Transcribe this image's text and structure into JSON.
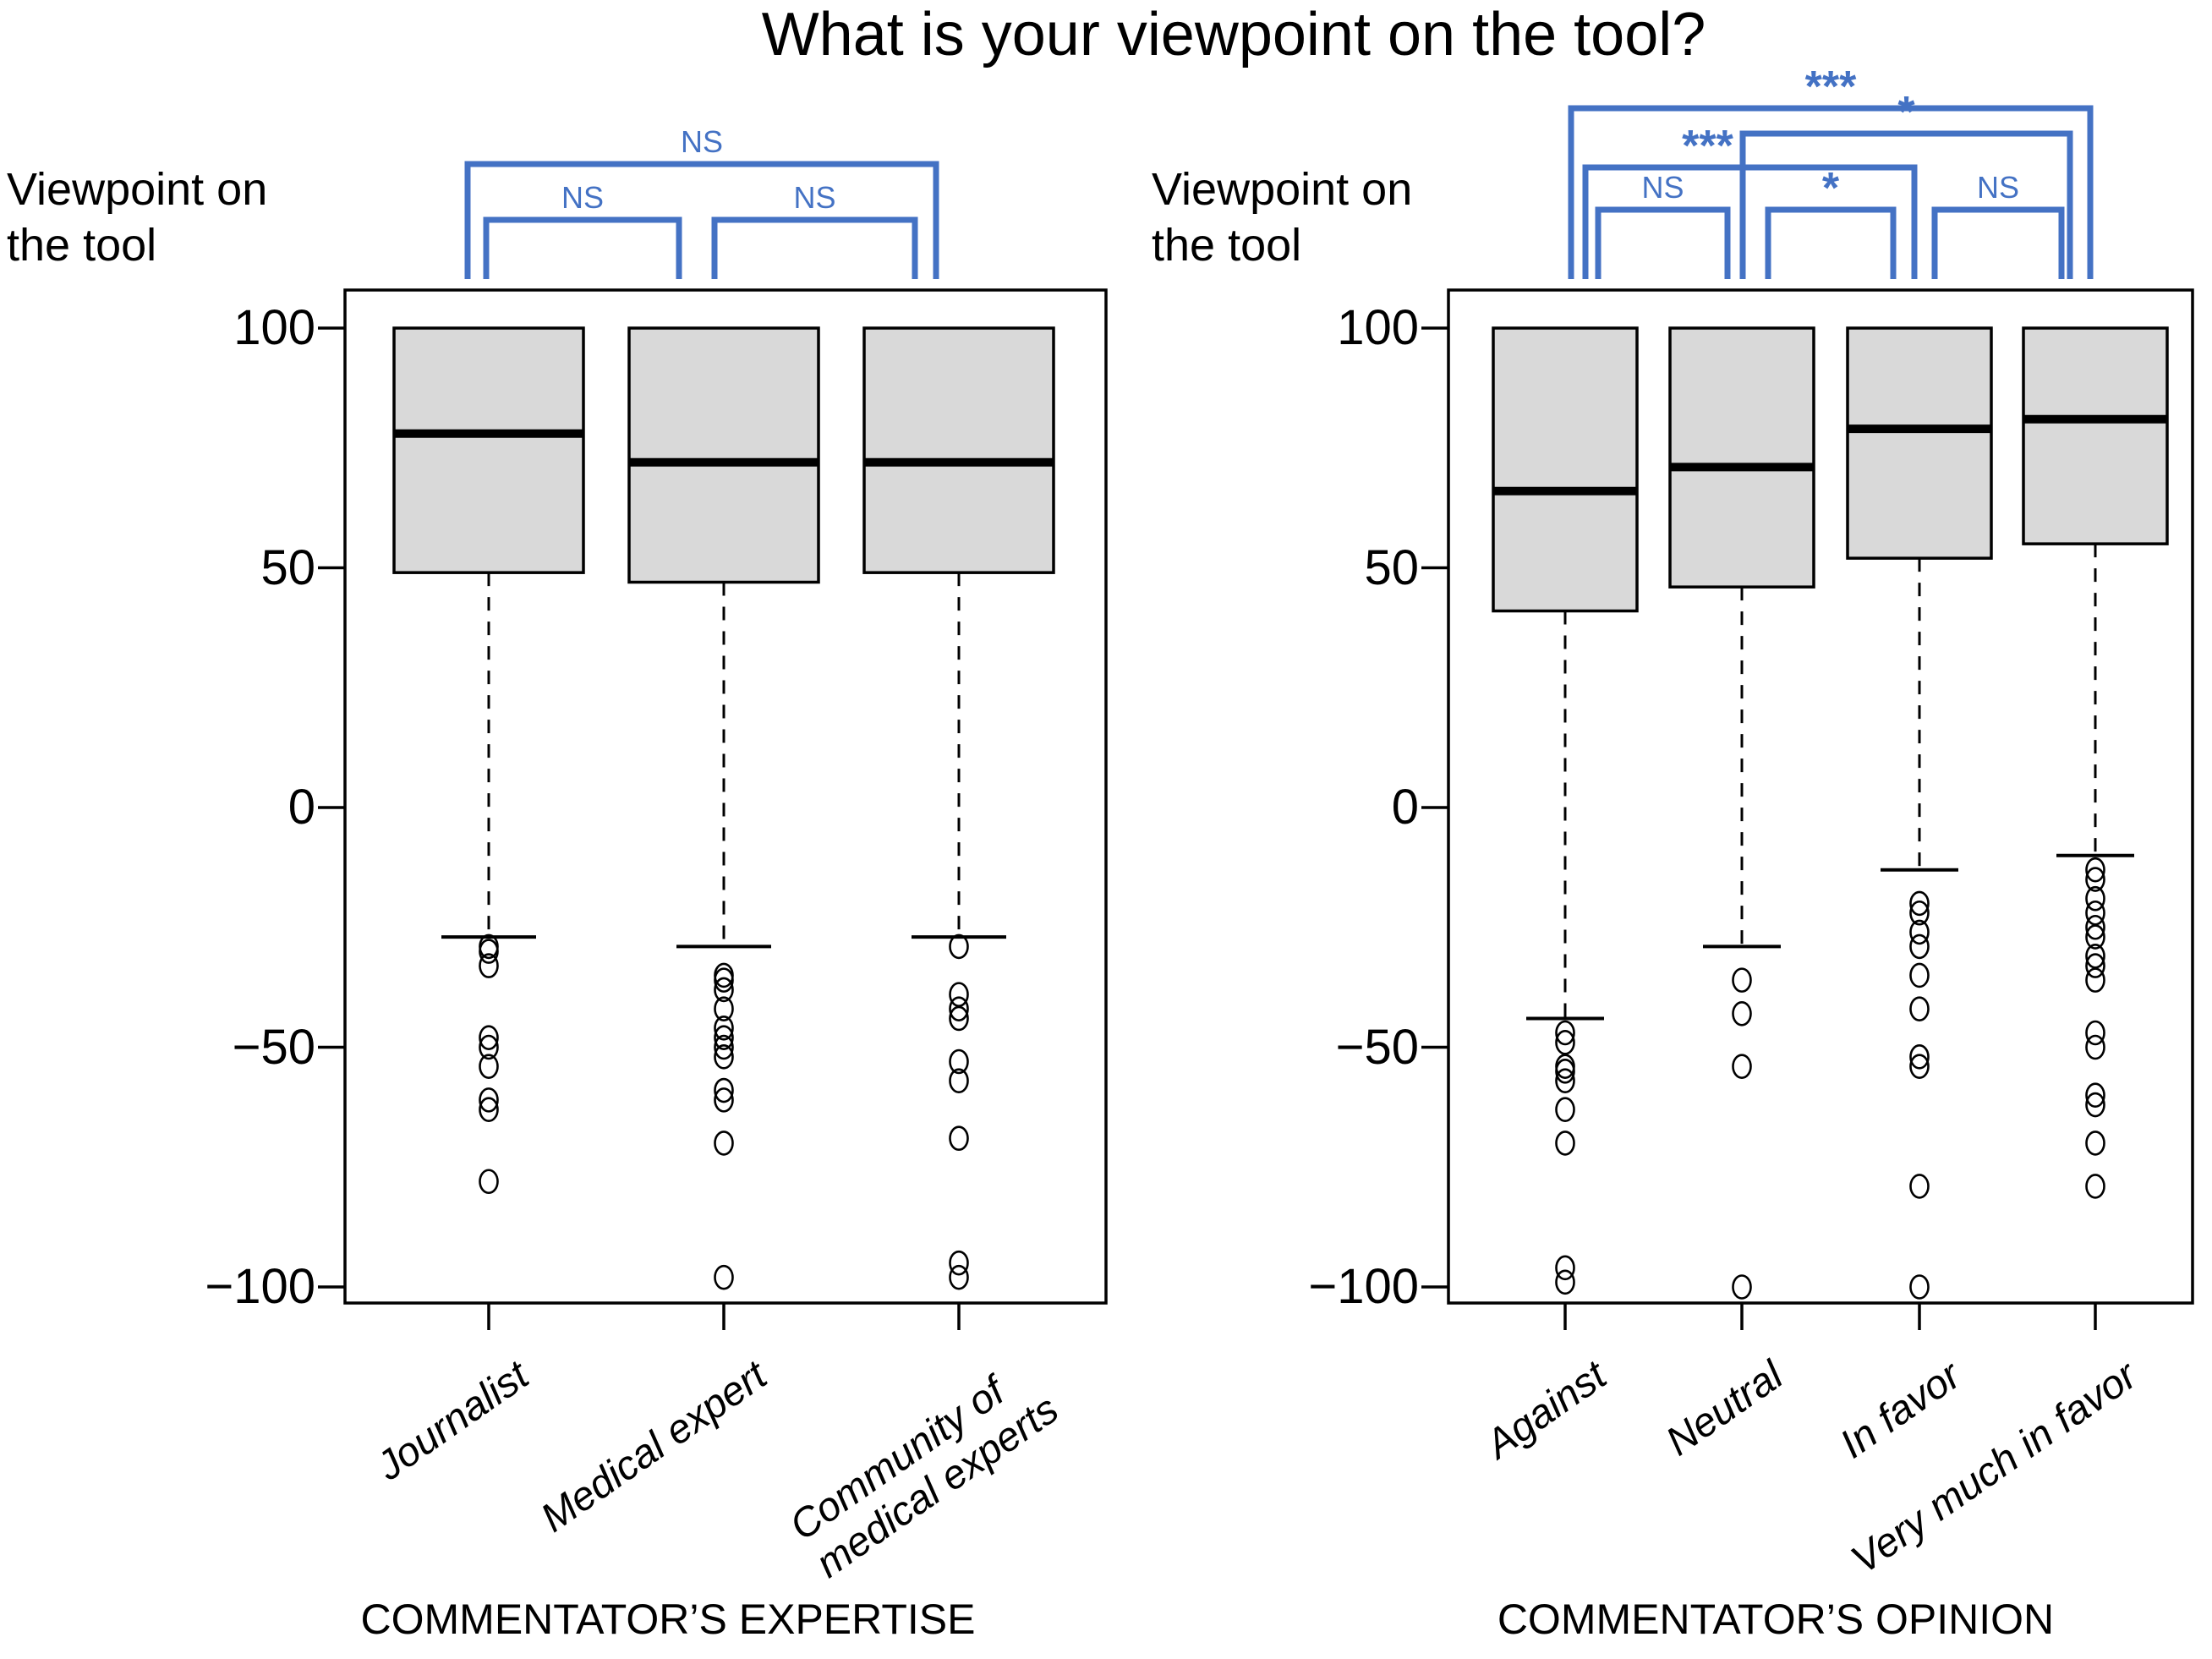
{
  "title": "What is your viewpoint on the tool?",
  "colors": {
    "bracket_blue": "#4472C4",
    "box_fill": "#D9D9D9",
    "stroke_black": "#000000",
    "background": "#FFFFFF"
  },
  "chart_data": [
    {
      "type": "boxplot",
      "panel": "left",
      "xlabel": "COMMENTATOR’S EXPERTISE",
      "ylabel_lines": [
        "Viewpoint on",
        "the tool"
      ],
      "ylim": [
        -100,
        100
      ],
      "grid": false,
      "yticks": [
        "100",
        "50",
        "0",
        "−50",
        "−100"
      ],
      "ytick_values": [
        100,
        50,
        0,
        -50,
        -100
      ],
      "categories": [
        "Journalist",
        "Medical expert",
        "Community of\nmedical experts"
      ],
      "boxes": [
        {
          "label": "Journalist",
          "q3": 100,
          "median": 78,
          "q1": 49,
          "whisker_low": -27,
          "outliers": [
            -29,
            -30,
            -33,
            -48,
            -50,
            -54,
            -61,
            -63,
            -78
          ]
        },
        {
          "label": "Medical expert",
          "q3": 100,
          "median": 72,
          "q1": 47,
          "whisker_low": -29,
          "outliers": [
            -35,
            -36,
            -38,
            -42,
            -46,
            -48,
            -50,
            -52,
            -59,
            -61,
            -70,
            -98
          ]
        },
        {
          "label": "Community of medical experts",
          "q3": 100,
          "median": 72,
          "q1": 49,
          "whisker_low": -27,
          "outliers": [
            -29,
            -39,
            -42,
            -44,
            -53,
            -57,
            -69,
            -95,
            -98
          ]
        }
      ],
      "significance": [
        {
          "label": "NS",
          "from": 0,
          "to": 2
        },
        {
          "label": "NS",
          "from": 0,
          "to": 1
        },
        {
          "label": "NS",
          "from": 1,
          "to": 2
        }
      ]
    },
    {
      "type": "boxplot",
      "panel": "right",
      "xlabel": "COMMENTATOR’S OPINION",
      "ylabel_lines": [
        "Viewpoint on",
        "the tool"
      ],
      "ylim": [
        -100,
        100
      ],
      "grid": false,
      "yticks": [
        "100",
        "50",
        "0",
        "−50",
        "−100"
      ],
      "ytick_values": [
        100,
        50,
        0,
        -50,
        -100
      ],
      "categories": [
        "Against",
        "Neutral",
        "In favor",
        "Very much in favor"
      ],
      "boxes": [
        {
          "label": "Against",
          "q3": 100,
          "median": 66,
          "q1": 41,
          "whisker_low": -44,
          "outliers": [
            -47,
            -49,
            -54,
            -55,
            -57,
            -63,
            -70,
            -96,
            -99
          ]
        },
        {
          "label": "Neutral",
          "q3": 100,
          "median": 71,
          "q1": 46,
          "whisker_low": -29,
          "outliers": [
            -36,
            -43,
            -54,
            -100
          ]
        },
        {
          "label": "In favor",
          "q3": 100,
          "median": 79,
          "q1": 52,
          "whisker_low": -13,
          "outliers": [
            -20,
            -22,
            -26,
            -29,
            -35,
            -42,
            -52,
            -54,
            -79,
            -100
          ]
        },
        {
          "label": "Very much in favor",
          "q3": 100,
          "median": 81,
          "q1": 55,
          "whisker_low": -10,
          "outliers": [
            -13,
            -15,
            -19,
            -22,
            -25,
            -27,
            -31,
            -33,
            -36,
            -47,
            -50,
            -60,
            -62,
            -70,
            -79
          ]
        }
      ],
      "significance": [
        {
          "label": "***",
          "from": 0,
          "to": 3
        },
        {
          "label": "*",
          "from": 1,
          "to": 3
        },
        {
          "label": "***",
          "from": 0,
          "to": 2
        },
        {
          "label": "NS",
          "from": 0,
          "to": 1
        },
        {
          "label": "*",
          "from": 1,
          "to": 2
        },
        {
          "label": "NS",
          "from": 2,
          "to": 3
        }
      ]
    }
  ]
}
